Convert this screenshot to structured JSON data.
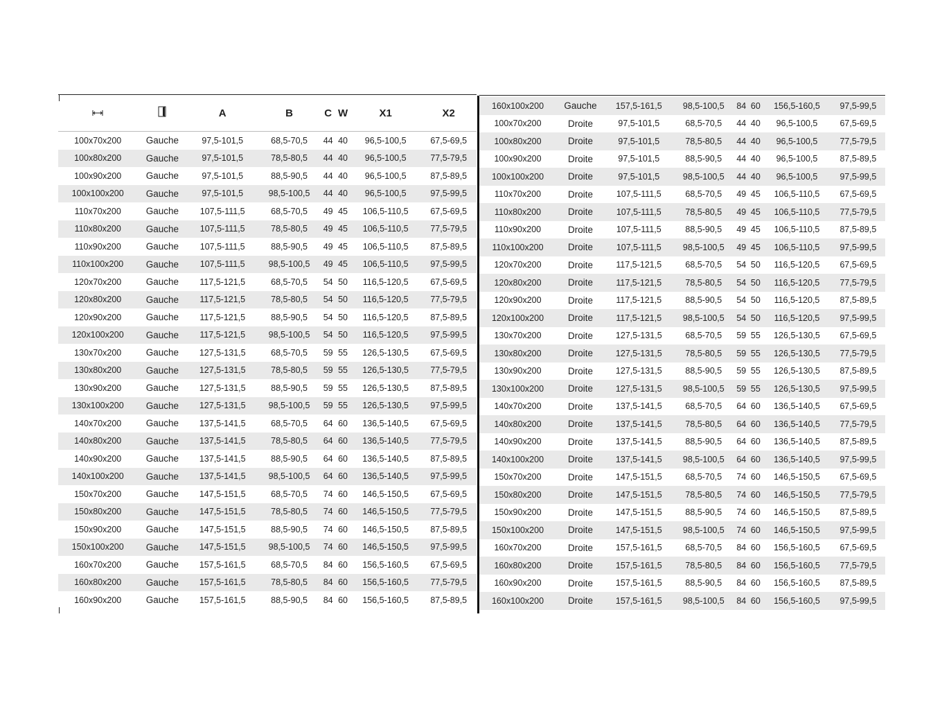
{
  "headers": {
    "size_icon": "width-arrows-icon",
    "door_icon": "door-icon",
    "cols": [
      "A",
      "B",
      "C",
      "W",
      "X1",
      "X2"
    ]
  },
  "left_rows": [
    [
      "100x70x200",
      "Gauche",
      "97,5-101,5",
      "68,5-70,5",
      "44",
      "40",
      "96,5-100,5",
      "67,5-69,5"
    ],
    [
      "100x80x200",
      "Gauche",
      "97,5-101,5",
      "78,5-80,5",
      "44",
      "40",
      "96,5-100,5",
      "77,5-79,5"
    ],
    [
      "100x90x200",
      "Gauche",
      "97,5-101,5",
      "88,5-90,5",
      "44",
      "40",
      "96,5-100,5",
      "87,5-89,5"
    ],
    [
      "100x100x200",
      "Gauche",
      "97,5-101,5",
      "98,5-100,5",
      "44",
      "40",
      "96,5-100,5",
      "97,5-99,5"
    ],
    [
      "110x70x200",
      "Gauche",
      "107,5-111,5",
      "68,5-70,5",
      "49",
      "45",
      "106,5-110,5",
      "67,5-69,5"
    ],
    [
      "110x80x200",
      "Gauche",
      "107,5-111,5",
      "78,5-80,5",
      "49",
      "45",
      "106,5-110,5",
      "77,5-79,5"
    ],
    [
      "110x90x200",
      "Gauche",
      "107,5-111,5",
      "88,5-90,5",
      "49",
      "45",
      "106,5-110,5",
      "87,5-89,5"
    ],
    [
      "110x100x200",
      "Gauche",
      "107,5-111,5",
      "98,5-100,5",
      "49",
      "45",
      "106,5-110,5",
      "97,5-99,5"
    ],
    [
      "120x70x200",
      "Gauche",
      "117,5-121,5",
      "68,5-70,5",
      "54",
      "50",
      "116,5-120,5",
      "67,5-69,5"
    ],
    [
      "120x80x200",
      "Gauche",
      "117,5-121,5",
      "78,5-80,5",
      "54",
      "50",
      "116,5-120,5",
      "77,5-79,5"
    ],
    [
      "120x90x200",
      "Gauche",
      "117,5-121,5",
      "88,5-90,5",
      "54",
      "50",
      "116,5-120,5",
      "87,5-89,5"
    ],
    [
      "120x100x200",
      "Gauche",
      "117,5-121,5",
      "98,5-100,5",
      "54",
      "50",
      "116,5-120,5",
      "97,5-99,5"
    ],
    [
      "130x70x200",
      "Gauche",
      "127,5-131,5",
      "68,5-70,5",
      "59",
      "55",
      "126,5-130,5",
      "67,5-69,5"
    ],
    [
      "130x80x200",
      "Gauche",
      "127,5-131,5",
      "78,5-80,5",
      "59",
      "55",
      "126,5-130,5",
      "77,5-79,5"
    ],
    [
      "130x90x200",
      "Gauche",
      "127,5-131,5",
      "88,5-90,5",
      "59",
      "55",
      "126,5-130,5",
      "87,5-89,5"
    ],
    [
      "130x100x200",
      "Gauche",
      "127,5-131,5",
      "98,5-100,5",
      "59",
      "55",
      "126,5-130,5",
      "97,5-99,5"
    ],
    [
      "140x70x200",
      "Gauche",
      "137,5-141,5",
      "68,5-70,5",
      "64",
      "60",
      "136,5-140,5",
      "67,5-69,5"
    ],
    [
      "140x80x200",
      "Gauche",
      "137,5-141,5",
      "78,5-80,5",
      "64",
      "60",
      "136,5-140,5",
      "77,5-79,5"
    ],
    [
      "140x90x200",
      "Gauche",
      "137,5-141,5",
      "88,5-90,5",
      "64",
      "60",
      "136,5-140,5",
      "87,5-89,5"
    ],
    [
      "140x100x200",
      "Gauche",
      "137,5-141,5",
      "98,5-100,5",
      "64",
      "60",
      "136,5-140,5",
      "97,5-99,5"
    ],
    [
      "150x70x200",
      "Gauche",
      "147,5-151,5",
      "68,5-70,5",
      "74",
      "60",
      "146,5-150,5",
      "67,5-69,5"
    ],
    [
      "150x80x200",
      "Gauche",
      "147,5-151,5",
      "78,5-80,5",
      "74",
      "60",
      "146,5-150,5",
      "77,5-79,5"
    ],
    [
      "150x90x200",
      "Gauche",
      "147,5-151,5",
      "88,5-90,5",
      "74",
      "60",
      "146,5-150,5",
      "87,5-89,5"
    ],
    [
      "150x100x200",
      "Gauche",
      "147,5-151,5",
      "98,5-100,5",
      "74",
      "60",
      "146,5-150,5",
      "97,5-99,5"
    ],
    [
      "160x70x200",
      "Gauche",
      "157,5-161,5",
      "68,5-70,5",
      "84",
      "60",
      "156,5-160,5",
      "67,5-69,5"
    ],
    [
      "160x80x200",
      "Gauche",
      "157,5-161,5",
      "78,5-80,5",
      "84",
      "60",
      "156,5-160,5",
      "77,5-79,5"
    ],
    [
      "160x90x200",
      "Gauche",
      "157,5-161,5",
      "88,5-90,5",
      "84",
      "60",
      "156,5-160,5",
      "87,5-89,5"
    ]
  ],
  "right_rows": [
    [
      "160x100x200",
      "Gauche",
      "157,5-161,5",
      "98,5-100,5",
      "84",
      "60",
      "156,5-160,5",
      "97,5-99,5"
    ],
    [
      "100x70x200",
      "Droite",
      "97,5-101,5",
      "68,5-70,5",
      "44",
      "40",
      "96,5-100,5",
      "67,5-69,5"
    ],
    [
      "100x80x200",
      "Droite",
      "97,5-101,5",
      "78,5-80,5",
      "44",
      "40",
      "96,5-100,5",
      "77,5-79,5"
    ],
    [
      "100x90x200",
      "Droite",
      "97,5-101,5",
      "88,5-90,5",
      "44",
      "40",
      "96,5-100,5",
      "87,5-89,5"
    ],
    [
      "100x100x200",
      "Droite",
      "97,5-101,5",
      "98,5-100,5",
      "44",
      "40",
      "96,5-100,5",
      "97,5-99,5"
    ],
    [
      "110x70x200",
      "Droite",
      "107,5-111,5",
      "68,5-70,5",
      "49",
      "45",
      "106,5-110,5",
      "67,5-69,5"
    ],
    [
      "110x80x200",
      "Droite",
      "107,5-111,5",
      "78,5-80,5",
      "49",
      "45",
      "106,5-110,5",
      "77,5-79,5"
    ],
    [
      "110x90x200",
      "Droite",
      "107,5-111,5",
      "88,5-90,5",
      "49",
      "45",
      "106,5-110,5",
      "87,5-89,5"
    ],
    [
      "110x100x200",
      "Droite",
      "107,5-111,5",
      "98,5-100,5",
      "49",
      "45",
      "106,5-110,5",
      "97,5-99,5"
    ],
    [
      "120x70x200",
      "Droite",
      "117,5-121,5",
      "68,5-70,5",
      "54",
      "50",
      "116,5-120,5",
      "67,5-69,5"
    ],
    [
      "120x80x200",
      "Droite",
      "117,5-121,5",
      "78,5-80,5",
      "54",
      "50",
      "116,5-120,5",
      "77,5-79,5"
    ],
    [
      "120x90x200",
      "Droite",
      "117,5-121,5",
      "88,5-90,5",
      "54",
      "50",
      "116,5-120,5",
      "87,5-89,5"
    ],
    [
      "120x100x200",
      "Droite",
      "117,5-121,5",
      "98,5-100,5",
      "54",
      "50",
      "116,5-120,5",
      "97,5-99,5"
    ],
    [
      "130x70x200",
      "Droite",
      "127,5-131,5",
      "68,5-70,5",
      "59",
      "55",
      "126,5-130,5",
      "67,5-69,5"
    ],
    [
      "130x80x200",
      "Droite",
      "127,5-131,5",
      "78,5-80,5",
      "59",
      "55",
      "126,5-130,5",
      "77,5-79,5"
    ],
    [
      "130x90x200",
      "Droite",
      "127,5-131,5",
      "88,5-90,5",
      "59",
      "55",
      "126,5-130,5",
      "87,5-89,5"
    ],
    [
      "130x100x200",
      "Droite",
      "127,5-131,5",
      "98,5-100,5",
      "59",
      "55",
      "126,5-130,5",
      "97,5-99,5"
    ],
    [
      "140x70x200",
      "Droite",
      "137,5-141,5",
      "68,5-70,5",
      "64",
      "60",
      "136,5-140,5",
      "67,5-69,5"
    ],
    [
      "140x80x200",
      "Droite",
      "137,5-141,5",
      "78,5-80,5",
      "64",
      "60",
      "136,5-140,5",
      "77,5-79,5"
    ],
    [
      "140x90x200",
      "Droite",
      "137,5-141,5",
      "88,5-90,5",
      "64",
      "60",
      "136,5-140,5",
      "87,5-89,5"
    ],
    [
      "140x100x200",
      "Droite",
      "137,5-141,5",
      "98,5-100,5",
      "64",
      "60",
      "136,5-140,5",
      "97,5-99,5"
    ],
    [
      "150x70x200",
      "Droite",
      "147,5-151,5",
      "68,5-70,5",
      "74",
      "60",
      "146,5-150,5",
      "67,5-69,5"
    ],
    [
      "150x80x200",
      "Droite",
      "147,5-151,5",
      "78,5-80,5",
      "74",
      "60",
      "146,5-150,5",
      "77,5-79,5"
    ],
    [
      "150x90x200",
      "Droite",
      "147,5-151,5",
      "88,5-90,5",
      "74",
      "60",
      "146,5-150,5",
      "87,5-89,5"
    ],
    [
      "150x100x200",
      "Droite",
      "147,5-151,5",
      "98,5-100,5",
      "74",
      "60",
      "146,5-150,5",
      "97,5-99,5"
    ],
    [
      "160x70x200",
      "Droite",
      "157,5-161,5",
      "68,5-70,5",
      "84",
      "60",
      "156,5-160,5",
      "67,5-69,5"
    ],
    [
      "160x80x200",
      "Droite",
      "157,5-161,5",
      "78,5-80,5",
      "84",
      "60",
      "156,5-160,5",
      "77,5-79,5"
    ],
    [
      "160x90x200",
      "Droite",
      "157,5-161,5",
      "88,5-90,5",
      "84",
      "60",
      "156,5-160,5",
      "87,5-89,5"
    ],
    [
      "160x100x200",
      "Droite",
      "157,5-161,5",
      "98,5-100,5",
      "84",
      "60",
      "156,5-160,5",
      "97,5-99,5"
    ]
  ]
}
